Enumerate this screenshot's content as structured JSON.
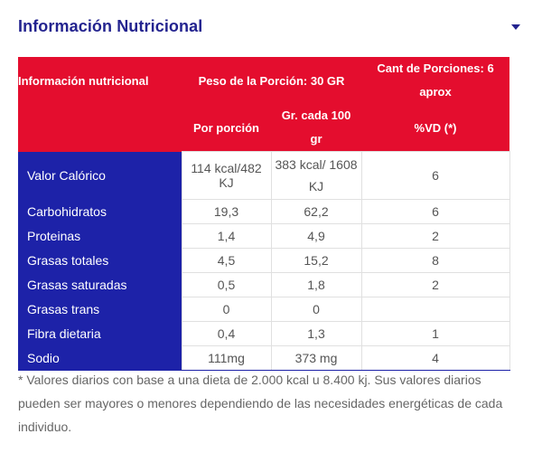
{
  "section": {
    "title": "Información Nutricional",
    "toggle_icon": "chevron-down-icon"
  },
  "table": {
    "header": {
      "col1": "Información nutricional",
      "col2_group": "Peso de la Porción: 30 GR",
      "col4_group": "Cant de Porciones: 6 aprox",
      "sub_col2": "Por porción",
      "sub_col3": "Gr. cada 100 gr",
      "sub_col4": "%VD (*)"
    },
    "rows": [
      {
        "label": "Valor Calórico",
        "per_portion": "114 kcal/482 KJ",
        "per_100": "383 kcal/ 1608 KJ",
        "vd": "6"
      },
      {
        "label": "Carbohidratos",
        "per_portion": "19,3",
        "per_100": "62,2",
        "vd": "6"
      },
      {
        "label": "Proteinas",
        "per_portion": "1,4",
        "per_100": "4,9",
        "vd": "2"
      },
      {
        "label": "Grasas totales",
        "per_portion": "4,5",
        "per_100": "15,2",
        "vd": "8"
      },
      {
        "label": "Grasas saturadas",
        "per_portion": "0,5",
        "per_100": "1,8",
        "vd": "2"
      },
      {
        "label": "Grasas trans",
        "per_portion": "0",
        "per_100": "0",
        "vd": ""
      },
      {
        "label": "Fibra dietaria",
        "per_portion": "0,4",
        "per_100": "1,3",
        "vd": "1"
      },
      {
        "label": "Sodio",
        "per_portion": "111mg",
        "per_100": "373 mg",
        "vd": "4"
      }
    ]
  },
  "footnote": "* Valores diarios con base a una dieta de 2.000 kcal u 8.400 kj. Sus valores diarios pueden ser mayores o menores dependiendo de las necesidades energéticas de cada individuo.",
  "colors": {
    "title": "#23238f",
    "header_bg": "#e40d2e",
    "label_bg": "#1d22a8"
  }
}
